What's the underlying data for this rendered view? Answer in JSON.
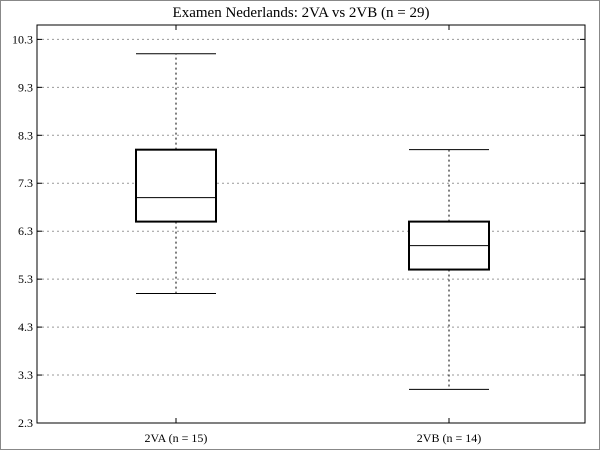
{
  "chart_data": {
    "type": "box",
    "title": "Examen Nederlands: 2VA vs 2VB (n = 29)",
    "xlabel": "",
    "ylabel": "",
    "ylim": [
      2.3,
      10.6
    ],
    "yticks": [
      2.3,
      3.3,
      4.3,
      5.3,
      6.3,
      7.3,
      8.3,
      9.3,
      10.3
    ],
    "ytick_labels": [
      "2.3",
      "3.3",
      "4.3",
      "5.3",
      "6.3",
      "7.3",
      "8.3",
      "9.3",
      "10.3"
    ],
    "grid": "horizontal-dotted",
    "categories": [
      "2VA (n = 15)",
      "2VB (n = 14)"
    ],
    "boxes": [
      {
        "category": "2VA (n = 15)",
        "min": 5.0,
        "q1": 6.5,
        "median": 7.0,
        "q3": 8.0,
        "max": 10.0
      },
      {
        "category": "2VB (n = 14)",
        "min": 3.0,
        "q1": 5.5,
        "median": 6.0,
        "q3": 6.5,
        "max": 8.0
      }
    ],
    "colors": {
      "box": "#000000",
      "grid": "#999999",
      "axis": "#000000"
    }
  }
}
